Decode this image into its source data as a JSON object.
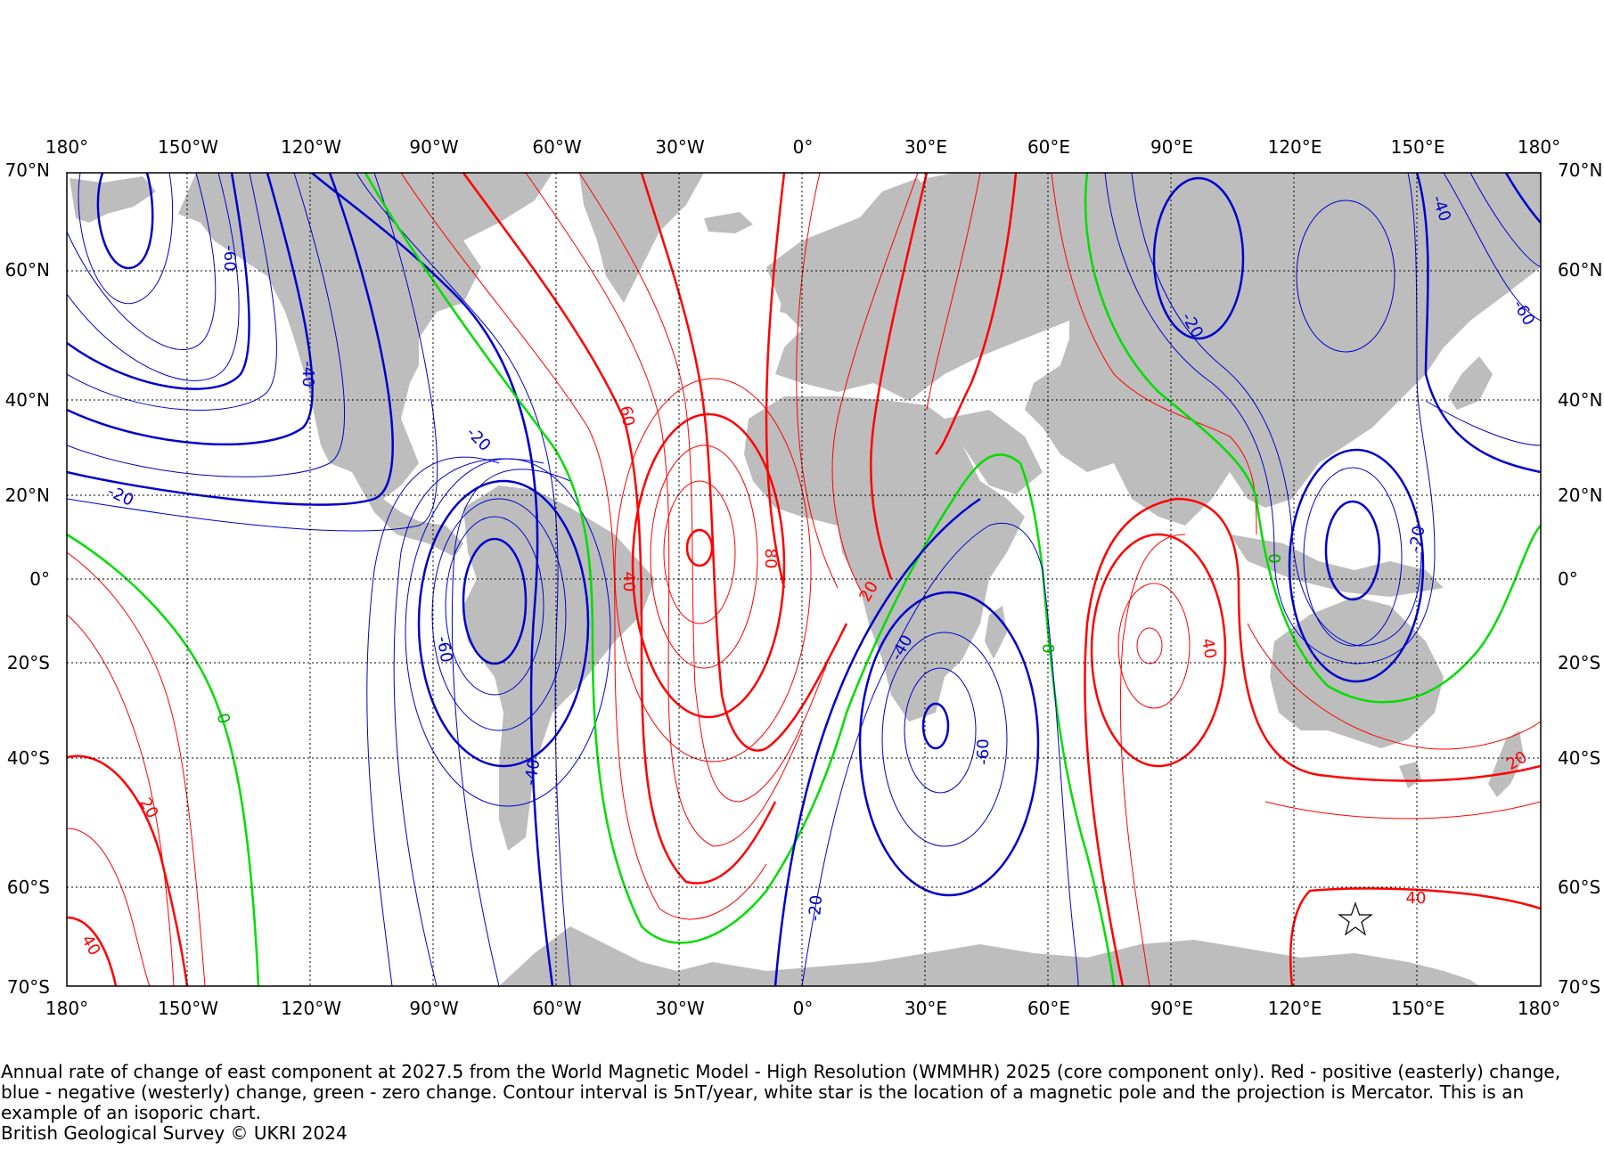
{
  "map": {
    "projection": "Mercator",
    "lon_ticks": [
      "180°",
      "150°W",
      "120°W",
      "90°W",
      "60°W",
      "30°W",
      "0°",
      "30°E",
      "60°E",
      "90°E",
      "120°E",
      "150°E",
      "180°"
    ],
    "lat_ticks": [
      "70°N",
      "60°N",
      "40°N",
      "20°N",
      "0°",
      "20°S",
      "40°S",
      "60°S",
      "70°S"
    ],
    "colors": {
      "positive": "#ff0000",
      "negative": "#0000cc",
      "zero": "#00dd00",
      "land": "#bdbdbd",
      "graticule": "#000000"
    },
    "contour_interval": "5nT/year",
    "contour_labels": [
      {
        "text": "-60",
        "color": "negative"
      },
      {
        "text": "-40",
        "color": "negative"
      },
      {
        "text": "-20",
        "color": "negative"
      },
      {
        "text": "-20",
        "color": "negative"
      },
      {
        "text": "-60",
        "color": "negative"
      },
      {
        "text": "-40",
        "color": "negative"
      },
      {
        "text": "60",
        "color": "positive"
      },
      {
        "text": "40",
        "color": "positive"
      },
      {
        "text": "80",
        "color": "positive"
      },
      {
        "text": "20",
        "color": "positive"
      },
      {
        "text": "-40",
        "color": "negative"
      },
      {
        "text": "-60",
        "color": "negative"
      },
      {
        "text": "-20",
        "color": "negative"
      },
      {
        "text": "0",
        "color": "zero"
      },
      {
        "text": "40",
        "color": "positive"
      },
      {
        "text": "0",
        "color": "zero"
      },
      {
        "text": "-20",
        "color": "negative"
      },
      {
        "text": "-40",
        "color": "negative"
      },
      {
        "text": "-60",
        "color": "negative"
      },
      {
        "text": "-20",
        "color": "negative"
      },
      {
        "text": "0",
        "color": "zero"
      },
      {
        "text": "20",
        "color": "positive"
      },
      {
        "text": "40",
        "color": "positive"
      },
      {
        "text": "20",
        "color": "positive"
      },
      {
        "text": "40",
        "color": "positive"
      }
    ],
    "magnetic_pole_marker": "white-star"
  },
  "caption": {
    "line1": "Annual rate of change of east component at 2027.5 from the World Magnetic Model - High Resolution (WMMHR) 2025 (core component only). Red - positive (easterly) change, blue - negative (westerly) change, green - zero change. Contour interval is 5nT/year, white star is the location of a magnetic pole and the projection is Mercator. This is an example of an isoporic chart.",
    "line2": "British Geological Survey © UKRI 2024"
  }
}
